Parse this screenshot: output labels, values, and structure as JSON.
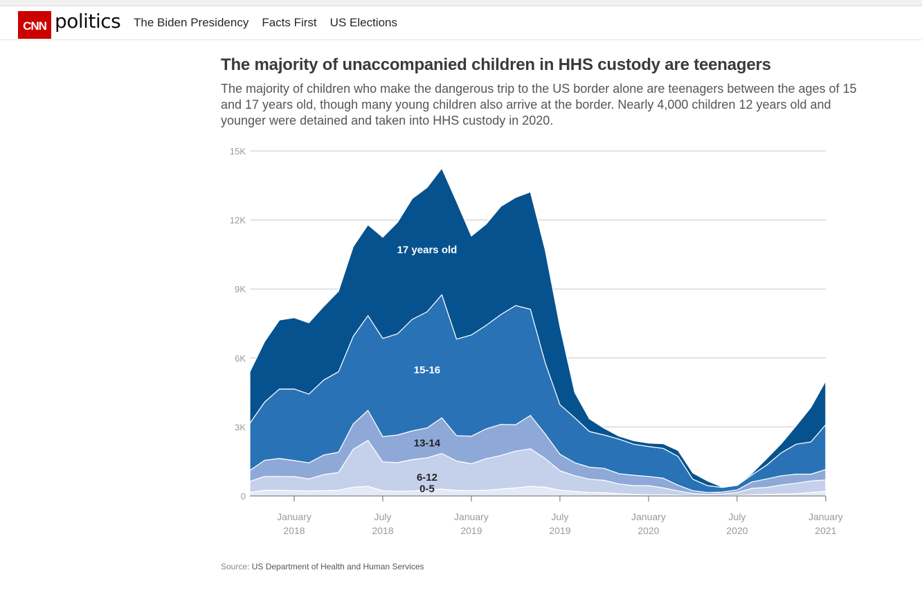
{
  "header": {
    "logo_text": "CNN",
    "section": "politics",
    "nav": [
      "The Biden Presidency",
      "Facts First",
      "US Elections"
    ]
  },
  "title": "The majority of unaccompanied children in HHS custody are teenagers",
  "subtitle": "The majority of children who make the dangerous trip to the US border alone are teenagers between the ages of 15 and 17 years old, though many young children also arrive at the border. Nearly 4,000 children 12 years old and younger were detained and taken into HHS custody in 2020.",
  "source_label": "Source:",
  "source_text": "US Department of Health and Human Services",
  "colors": {
    "brand_red": "#cc0000",
    "age_0_5": "#e4eaf5",
    "age_6_12": "#c5d1ea",
    "age_13_14": "#8ea9d8",
    "age_15_16": "#2972b6",
    "age_17": "#06528e",
    "grid": "#c8c8c8",
    "axis_text": "#999999"
  },
  "chart_data": {
    "type": "area",
    "stacked": true,
    "ylim": [
      0,
      15000
    ],
    "yticks": [
      0,
      3000,
      6000,
      9000,
      12000,
      15000
    ],
    "ytick_labels": [
      "0",
      "3K",
      "6K",
      "9K",
      "12K",
      "15K"
    ],
    "xticks": [
      {
        "date": "2018-01",
        "line1": "January",
        "line2": "2018"
      },
      {
        "date": "2018-07",
        "line1": "July",
        "line2": "2018"
      },
      {
        "date": "2019-01",
        "line1": "January",
        "line2": "2019"
      },
      {
        "date": "2019-07",
        "line1": "July",
        "line2": "2019"
      },
      {
        "date": "2020-01",
        "line1": "January",
        "line2": "2020"
      },
      {
        "date": "2020-07",
        "line1": "July",
        "line2": "2020"
      },
      {
        "date": "2021-01",
        "line1": "January",
        "line2": "2021"
      }
    ],
    "x": [
      "2017-10",
      "2017-11",
      "2017-12",
      "2018-01",
      "2018-02",
      "2018-03",
      "2018-04",
      "2018-05",
      "2018-06",
      "2018-07",
      "2018-08",
      "2018-09",
      "2018-10",
      "2018-11",
      "2018-12",
      "2019-01",
      "2019-02",
      "2019-03",
      "2019-04",
      "2019-05",
      "2019-06",
      "2019-07",
      "2019-08",
      "2019-09",
      "2019-10",
      "2019-11",
      "2019-12",
      "2020-01",
      "2020-02",
      "2020-03",
      "2020-04",
      "2020-05",
      "2020-06",
      "2020-07",
      "2020-08",
      "2020-09",
      "2020-10",
      "2020-11",
      "2020-12",
      "2021-01"
    ],
    "series": [
      {
        "name": "0-5",
        "values": [
          150,
          250,
          250,
          230,
          220,
          230,
          250,
          380,
          420,
          230,
          200,
          220,
          260,
          300,
          240,
          230,
          250,
          300,
          350,
          420,
          380,
          250,
          200,
          150,
          140,
          100,
          70,
          50,
          50,
          40,
          20,
          10,
          10,
          20,
          50,
          70,
          80,
          100,
          150,
          200
        ]
      },
      {
        "name": "6-12",
        "values": [
          480,
          600,
          600,
          610,
          520,
          700,
          770,
          1650,
          2000,
          1250,
          1250,
          1360,
          1400,
          1550,
          1280,
          1170,
          1370,
          1460,
          1600,
          1630,
          1250,
          850,
          680,
          580,
          540,
          420,
          380,
          400,
          300,
          180,
          90,
          60,
          80,
          130,
          280,
          300,
          400,
          450,
          500,
          500
        ]
      },
      {
        "name": "13-14",
        "values": [
          480,
          700,
          780,
          700,
          700,
          850,
          880,
          1100,
          1300,
          1100,
          1200,
          1250,
          1300,
          1550,
          1100,
          1200,
          1300,
          1350,
          1150,
          1450,
          1070,
          720,
          570,
          520,
          520,
          450,
          450,
          400,
          420,
          250,
          120,
          80,
          80,
          110,
          280,
          370,
          400,
          400,
          300,
          450
        ]
      },
      {
        "name": "15-16",
        "values": [
          2050,
          2530,
          3020,
          3110,
          2990,
          3260,
          3500,
          3810,
          4120,
          4270,
          4400,
          4850,
          5050,
          5350,
          4200,
          4400,
          4500,
          4780,
          5180,
          4620,
          3100,
          2150,
          1950,
          1550,
          1450,
          1500,
          1350,
          1300,
          1300,
          1250,
          500,
          300,
          200,
          200,
          300,
          600,
          1000,
          1300,
          1400,
          1950
        ]
      },
      {
        "name": "17 years old",
        "values": [
          2240,
          2630,
          3000,
          3100,
          3100,
          3200,
          3500,
          3900,
          3950,
          4400,
          4850,
          5250,
          5400,
          5500,
          5980,
          4300,
          4400,
          4700,
          4700,
          5100,
          4900,
          3400,
          1100,
          550,
          290,
          130,
          150,
          150,
          200,
          260,
          270,
          200,
          20,
          20,
          70,
          280,
          400,
          800,
          1500,
          1900
        ]
      }
    ]
  }
}
